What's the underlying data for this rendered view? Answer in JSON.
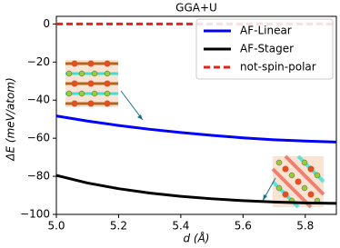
{
  "chart_data": {
    "type": "line",
    "title": "GGA+U",
    "x_label": "d (Å)",
    "y_label": "ΔE (meV/atom)",
    "x": [
      5.0,
      5.1,
      5.2,
      5.3,
      5.4,
      5.5,
      5.6,
      5.7,
      5.8,
      5.9
    ],
    "series": [
      {
        "name": "AF-Linear",
        "color": "#0000ff",
        "dash": "solid",
        "values": [
          -48.3,
          -51,
          -53.3,
          -55.3,
          -57,
          -58.5,
          -59.8,
          -60.8,
          -61.5,
          -62
        ]
      },
      {
        "name": "AF-Stager",
        "color": "#000000",
        "dash": "solid",
        "values": [
          -79.5,
          -83.5,
          -86.5,
          -88.8,
          -90.5,
          -91.8,
          -92.8,
          -93.5,
          -94,
          -94.2
        ]
      },
      {
        "name": "not-spin-polar",
        "color": "#e8231a",
        "dash": "dashed",
        "values": [
          0,
          0,
          0,
          0,
          0,
          0,
          0,
          0,
          0,
          0
        ]
      }
    ],
    "xlim": [
      5.0,
      5.9
    ],
    "xticks": [
      {
        "value": 5.0,
        "label": "5.0"
      },
      5.2,
      5.4,
      5.6,
      5.8
    ],
    "ylim": [
      -100,
      4
    ],
    "yticks": [
      {
        "value": -100,
        "label": "−100"
      },
      {
        "value": -80,
        "label": "−80"
      },
      {
        "value": -60,
        "label": "−60"
      },
      {
        "value": -40,
        "label": "−40"
      },
      {
        "value": -20,
        "label": "−20"
      },
      0
    ],
    "legend": "upper right",
    "grid": false
  }
}
